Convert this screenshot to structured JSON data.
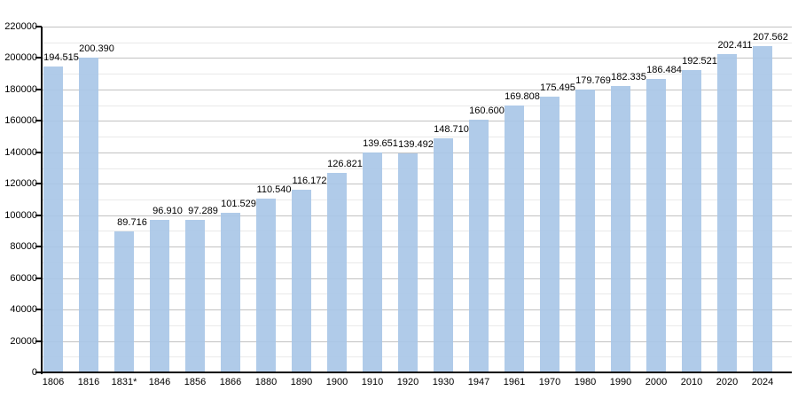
{
  "chart_data": {
    "type": "bar",
    "title": "",
    "xlabel": "",
    "ylabel": "",
    "categories": [
      "1806",
      "1816",
      "1831*",
      "1846",
      "1856",
      "1866",
      "1880",
      "1890",
      "1900",
      "1910",
      "1920",
      "1930",
      "1947",
      "1961",
      "1970",
      "1980",
      "1990",
      "2000",
      "2010",
      "2020",
      "2024"
    ],
    "values": [
      194515,
      200390,
      89716,
      96910,
      97289,
      101529,
      110540,
      116172,
      126821,
      139651,
      139492,
      148710,
      160600,
      169808,
      175495,
      179769,
      182335,
      186484,
      192521,
      202411,
      207562
    ],
    "value_labels": [
      "194.515",
      "200.390",
      "89.716",
      "96.910",
      "97.289",
      "101.529",
      "110.540",
      "116.172",
      "126.821",
      "139.651",
      "139.492",
      "148.710",
      "160.600",
      "169.808",
      "175.495",
      "179.769",
      "182.335",
      "186.484",
      "192.521",
      "202.411",
      "207.562"
    ],
    "ylim": [
      0,
      220000
    ],
    "y_tick_labels": [
      "0",
      "20000",
      "40000",
      "60000",
      "80000",
      "100000",
      "120000",
      "140000",
      "160000",
      "180000",
      "200000",
      "220000"
    ],
    "y_major_step": 20000,
    "y_minor_step": 10000,
    "grid": true,
    "legend_position": "none",
    "colors": {
      "bar_fill": "#a9c7e7",
      "grid_major": "#c2c2c2",
      "grid_minor": "#e9e9e9",
      "axis": "#000000",
      "text": "#000000",
      "background": "#ffffff"
    }
  }
}
